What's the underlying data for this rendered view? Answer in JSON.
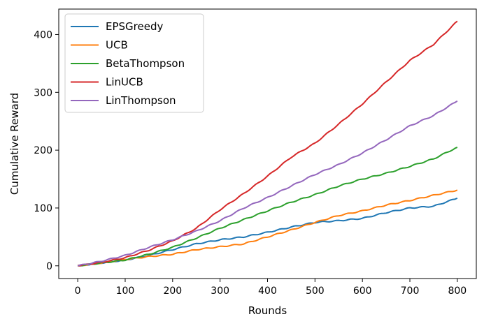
{
  "chart_data": {
    "type": "line",
    "title": "",
    "xlabel": "Rounds",
    "ylabel": "Cumulative Reward",
    "xlim": [
      -40,
      840
    ],
    "ylim": [
      -22,
      444
    ],
    "xticks": [
      0,
      100,
      200,
      300,
      400,
      500,
      600,
      700,
      800
    ],
    "yticks": [
      0,
      100,
      200,
      300,
      400
    ],
    "grid": false,
    "legend_position": "top-left",
    "series": [
      {
        "name": "EPSGreedy",
        "color": "#1f77b4",
        "x": [
          0,
          50,
          100,
          150,
          200,
          250,
          300,
          350,
          400,
          450,
          500,
          550,
          600,
          650,
          700,
          750,
          800
        ],
        "y": [
          0,
          5,
          10,
          18,
          28,
          38,
          45,
          50,
          58,
          67,
          75,
          78,
          82,
          92,
          100,
          103,
          117
        ]
      },
      {
        "name": "UCB",
        "color": "#ff7f0e",
        "x": [
          0,
          50,
          100,
          150,
          200,
          250,
          300,
          350,
          400,
          450,
          500,
          550,
          600,
          650,
          700,
          750,
          800
        ],
        "y": [
          0,
          5,
          11,
          16,
          20,
          28,
          33,
          38,
          50,
          62,
          75,
          87,
          95,
          105,
          113,
          122,
          131
        ]
      },
      {
        "name": "BetaThompson",
        "color": "#2ca02c",
        "x": [
          0,
          50,
          100,
          150,
          200,
          250,
          300,
          350,
          400,
          450,
          500,
          550,
          600,
          650,
          700,
          750,
          800
        ],
        "y": [
          0,
          5,
          10,
          20,
          32,
          48,
          65,
          80,
          95,
          110,
          123,
          138,
          150,
          160,
          172,
          185,
          205
        ]
      },
      {
        "name": "LinUCB",
        "color": "#d62728",
        "x": [
          0,
          50,
          100,
          150,
          200,
          250,
          300,
          350,
          400,
          450,
          500,
          550,
          600,
          650,
          700,
          750,
          800
        ],
        "y": [
          0,
          6,
          14,
          27,
          43,
          65,
          97,
          125,
          155,
          188,
          212,
          245,
          280,
          318,
          355,
          383,
          423
        ]
      },
      {
        "name": "LinThompson",
        "color": "#9467bd",
        "x": [
          0,
          50,
          100,
          150,
          200,
          250,
          300,
          350,
          400,
          450,
          500,
          550,
          600,
          650,
          700,
          750,
          800
        ],
        "y": [
          0,
          8,
          18,
          32,
          45,
          60,
          78,
          100,
          118,
          138,
          158,
          175,
          195,
          218,
          242,
          260,
          285
        ]
      }
    ]
  }
}
